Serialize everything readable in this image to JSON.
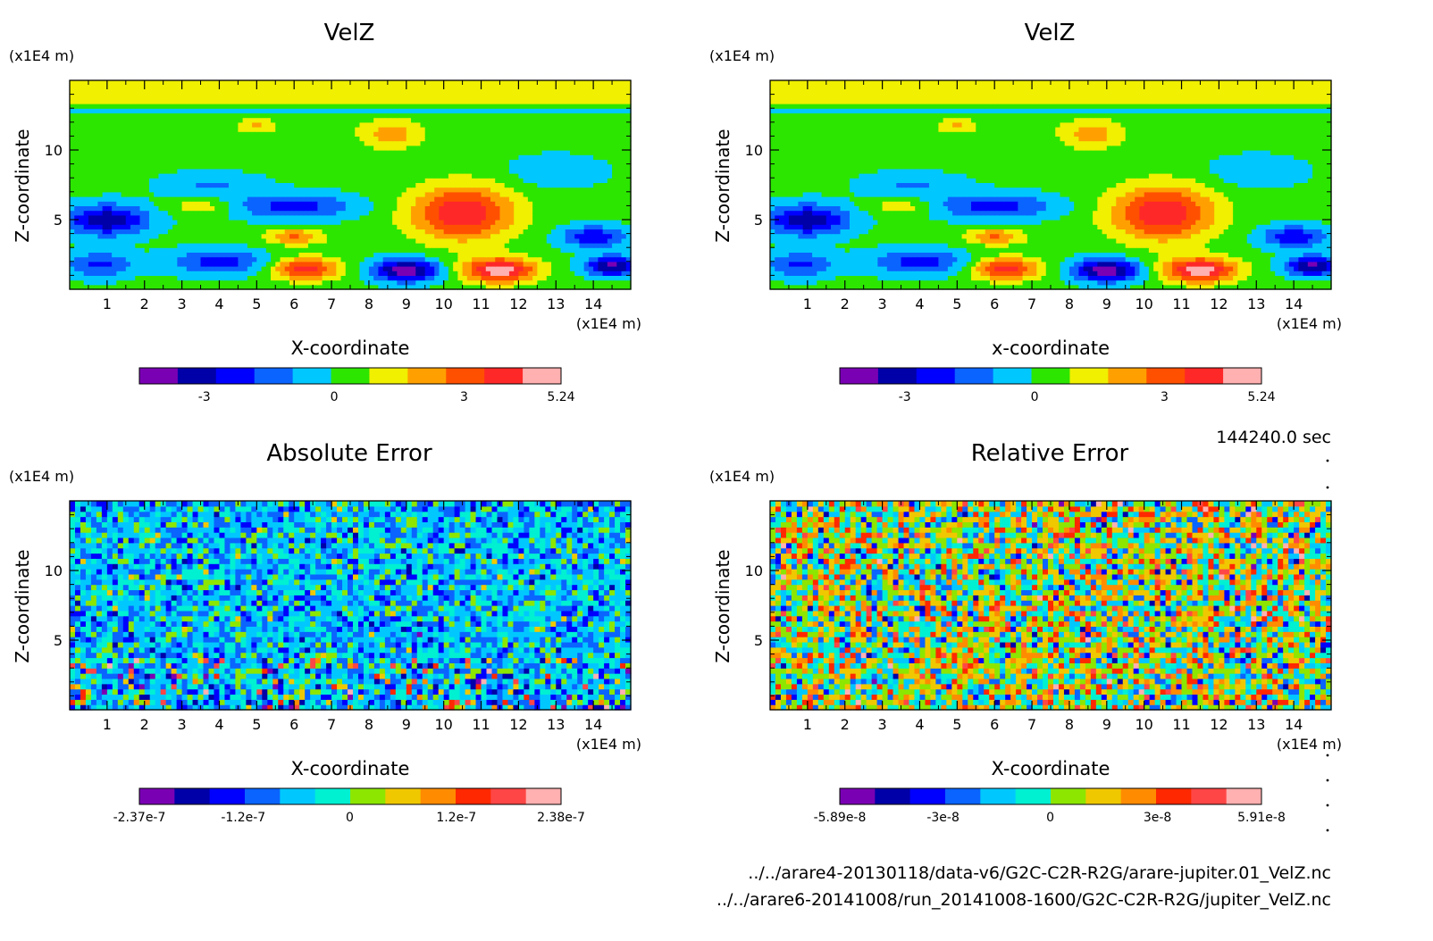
{
  "time_label": "144240.0 sec",
  "files": [
    "../../arare4-20130118/data-v6/G2C-C2R-R2G/arare-jupiter.01_VelZ.nc",
    "../../arare6-20141008/run_20141008-1600/G2C-C2R-R2G/jupiter_VelZ.nc"
  ],
  "chart_data": [
    {
      "type": "heatmap",
      "title": "VelZ",
      "xlabel": "X-coordinate",
      "ylabel": "Z-coordinate",
      "x_unit": "(x1E4 m)",
      "y_unit": "(x1E4 m)",
      "xlim": [
        0,
        15
      ],
      "ylim": [
        0,
        15
      ],
      "x_ticks": [
        1,
        2,
        3,
        4,
        5,
        6,
        7,
        8,
        9,
        10,
        11,
        12,
        13,
        14
      ],
      "y_ticks": [
        5,
        10
      ],
      "colorbar": {
        "range": [
          -4.5,
          5.24
        ],
        "tick_values": [
          -3,
          0,
          3,
          5.24
        ],
        "tick_labels": [
          "-3",
          "0",
          "3",
          "5.24"
        ],
        "colors": [
          "#7a00b4",
          "#0000a8",
          "#0000ff",
          "#0a64ff",
          "#00c8ff",
          "#2ce600",
          "#f0f000",
          "#ffa000",
          "#ff5000",
          "#ff2828",
          "#ffb0b0"
        ]
      },
      "field": "smooth"
    },
    {
      "type": "heatmap",
      "title": "VelZ",
      "xlabel": "x-coordinate",
      "ylabel": "Z-coordinate",
      "x_unit": "(x1E4 m)",
      "y_unit": "(x1E4 m)",
      "xlim": [
        0,
        15
      ],
      "ylim": [
        0,
        15
      ],
      "x_ticks": [
        1,
        2,
        3,
        4,
        5,
        6,
        7,
        8,
        9,
        10,
        11,
        12,
        13,
        14
      ],
      "y_ticks": [
        5,
        10
      ],
      "colorbar": {
        "range": [
          -4.5,
          5.24
        ],
        "tick_values": [
          -3,
          0,
          3,
          5.24
        ],
        "tick_labels": [
          "-3",
          "0",
          "3",
          "5.24"
        ],
        "colors": [
          "#7a00b4",
          "#0000a8",
          "#0000ff",
          "#0a64ff",
          "#00c8ff",
          "#2ce600",
          "#f0f000",
          "#ffa000",
          "#ff5000",
          "#ff2828",
          "#ffb0b0"
        ]
      },
      "field": "smooth"
    },
    {
      "type": "heatmap",
      "title": "Absolute Error",
      "xlabel": "X-coordinate",
      "ylabel": "Z-coordinate",
      "x_unit": "(x1E4 m)",
      "y_unit": "(x1E4 m)",
      "xlim": [
        0,
        15
      ],
      "ylim": [
        0,
        15
      ],
      "x_ticks": [
        1,
        2,
        3,
        4,
        5,
        6,
        7,
        8,
        9,
        10,
        11,
        12,
        13,
        14
      ],
      "y_ticks": [
        5,
        10
      ],
      "colorbar": {
        "range": [
          -2.37e-07,
          2.38e-07
        ],
        "tick_values": [
          -2.37e-07,
          -1.2e-07,
          0,
          1.2e-07,
          2.38e-07
        ],
        "tick_labels": [
          "-2.37e-7",
          "-1.2e-7",
          "0",
          "1.2e-7",
          "2.38e-7"
        ],
        "colors": [
          "#7a00b4",
          "#0000a8",
          "#0000ff",
          "#0a64ff",
          "#00c8ff",
          "#00f0d2",
          "#8ce600",
          "#f0c800",
          "#ff8c00",
          "#ff2800",
          "#ff4646",
          "#ffb0b0"
        ]
      },
      "field": "noise-absolute"
    },
    {
      "type": "heatmap",
      "title": "Relative Error",
      "xlabel": "X-coordinate",
      "ylabel": "Z-coordinate",
      "x_unit": "(x1E4 m)",
      "y_unit": "(x1E4 m)",
      "xlim": [
        0,
        15
      ],
      "ylim": [
        0,
        15
      ],
      "x_ticks": [
        1,
        2,
        3,
        4,
        5,
        6,
        7,
        8,
        9,
        10,
        11,
        12,
        13,
        14
      ],
      "y_ticks": [
        5,
        10
      ],
      "colorbar": {
        "range": [
          -5.89e-08,
          5.91e-08
        ],
        "tick_values": [
          -5.89e-08,
          -3e-08,
          0,
          3e-08,
          5.91e-08
        ],
        "tick_labels": [
          "-5.89e-8",
          "-3e-8",
          "0",
          "3e-8",
          "5.91e-8"
        ],
        "colors": [
          "#7a00b4",
          "#0000a8",
          "#0000ff",
          "#0a64ff",
          "#00c8ff",
          "#00f0d2",
          "#8ce600",
          "#f0c800",
          "#ff8c00",
          "#ff2800",
          "#ff4646",
          "#ffb0b0"
        ]
      },
      "field": "noise-relative"
    }
  ]
}
